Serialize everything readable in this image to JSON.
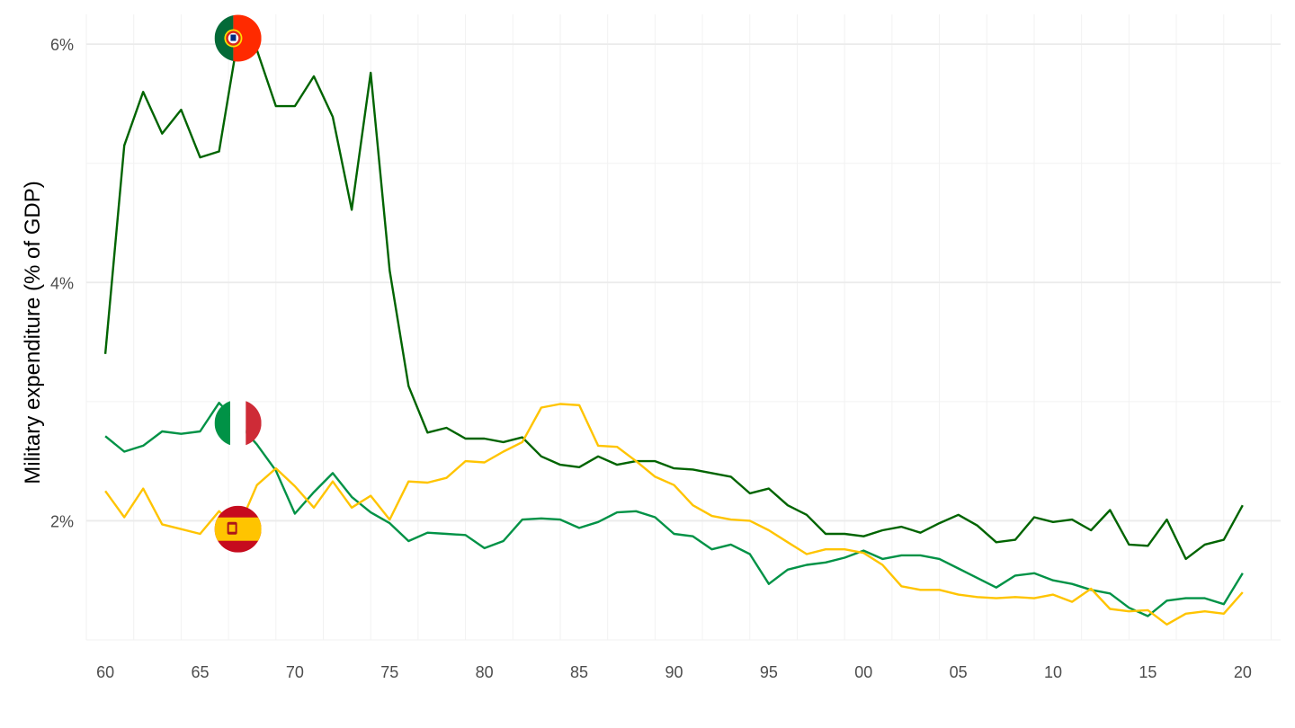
{
  "chart_data": {
    "type": "line",
    "ylabel": "Military expenditure (% of GDP)",
    "xlabel": "",
    "x": [
      1960,
      1961,
      1962,
      1963,
      1964,
      1965,
      1966,
      1967,
      1968,
      1969,
      1970,
      1971,
      1972,
      1973,
      1974,
      1975,
      1976,
      1977,
      1978,
      1979,
      1980,
      1981,
      1982,
      1983,
      1984,
      1985,
      1986,
      1987,
      1988,
      1989,
      1990,
      1991,
      1992,
      1993,
      1994,
      1995,
      1996,
      1997,
      1998,
      1999,
      2000,
      2001,
      2002,
      2003,
      2004,
      2005,
      2006,
      2007,
      2008,
      2009,
      2010,
      2011,
      2012,
      2013,
      2014,
      2015,
      2016,
      2017,
      2018,
      2019,
      2020
    ],
    "xlim": [
      1959,
      2022
    ],
    "x_ticks": [
      1960,
      1965,
      1970,
      1975,
      1980,
      1985,
      1990,
      1995,
      2000,
      2005,
      2010,
      2015,
      2020
    ],
    "x_tick_labels": [
      "60",
      "65",
      "70",
      "75",
      "80",
      "85",
      "90",
      "95",
      "00",
      "05",
      "10",
      "15",
      "20"
    ],
    "ylim": [
      1.0,
      6.25
    ],
    "y_ticks": [
      2,
      4,
      6
    ],
    "y_tick_labels": [
      "2%",
      "4%",
      "6%"
    ],
    "y_minor_ticks": [
      1,
      3,
      5
    ],
    "grid": true,
    "series": [
      {
        "country": "Portugal",
        "color": "#006400",
        "flag_icon": "portugal-flag-icon",
        "values": [
          3.4,
          5.15,
          5.6,
          5.25,
          5.45,
          5.05,
          5.1,
          6.05,
          5.95,
          5.48,
          5.48,
          5.73,
          5.39,
          4.61,
          5.76,
          4.1,
          3.13,
          2.74,
          2.78,
          2.69,
          2.69,
          2.66,
          2.7,
          2.54,
          2.47,
          2.45,
          2.54,
          2.47,
          2.5,
          2.5,
          2.44,
          2.43,
          2.4,
          2.37,
          2.23,
          2.27,
          2.13,
          2.05,
          1.89,
          1.89,
          1.87,
          1.92,
          1.95,
          1.9,
          1.98,
          2.05,
          1.96,
          1.82,
          1.84,
          2.03,
          1.99,
          2.01,
          1.92,
          2.09,
          1.8,
          1.79,
          2.01,
          1.68,
          1.8,
          1.84,
          2.13
        ]
      },
      {
        "country": "Italy",
        "color": "#009246",
        "flag_icon": "italy-flag-icon",
        "values": [
          2.71,
          2.58,
          2.63,
          2.75,
          2.73,
          2.75,
          2.99,
          2.82,
          2.64,
          2.42,
          2.06,
          2.24,
          2.4,
          2.2,
          2.07,
          1.98,
          1.83,
          1.9,
          1.89,
          1.88,
          1.77,
          1.83,
          2.01,
          2.02,
          2.01,
          1.94,
          1.99,
          2.07,
          2.08,
          2.03,
          1.89,
          1.87,
          1.76,
          1.8,
          1.72,
          1.47,
          1.59,
          1.63,
          1.65,
          1.69,
          1.75,
          1.68,
          1.71,
          1.71,
          1.68,
          1.6,
          1.52,
          1.44,
          1.54,
          1.56,
          1.5,
          1.47,
          1.42,
          1.39,
          1.27,
          1.2,
          1.33,
          1.35,
          1.35,
          1.3,
          1.56
        ]
      },
      {
        "country": "Spain",
        "color": "#FFC400",
        "flag_icon": "spain-flag-icon",
        "values": [
          2.25,
          2.03,
          2.27,
          1.97,
          1.93,
          1.89,
          2.08,
          1.93,
          2.3,
          2.44,
          2.29,
          2.11,
          2.33,
          2.11,
          2.21,
          2.01,
          2.33,
          2.32,
          2.36,
          2.5,
          2.49,
          2.58,
          2.66,
          2.95,
          2.98,
          2.97,
          2.63,
          2.62,
          2.5,
          2.37,
          2.3,
          2.13,
          2.04,
          2.01,
          2.0,
          1.92,
          1.82,
          1.72,
          1.76,
          1.76,
          1.73,
          1.63,
          1.45,
          1.42,
          1.42,
          1.38,
          1.36,
          1.35,
          1.36,
          1.35,
          1.38,
          1.32,
          1.43,
          1.26,
          1.24,
          1.25,
          1.13,
          1.22,
          1.24,
          1.22,
          1.4
        ]
      }
    ]
  }
}
